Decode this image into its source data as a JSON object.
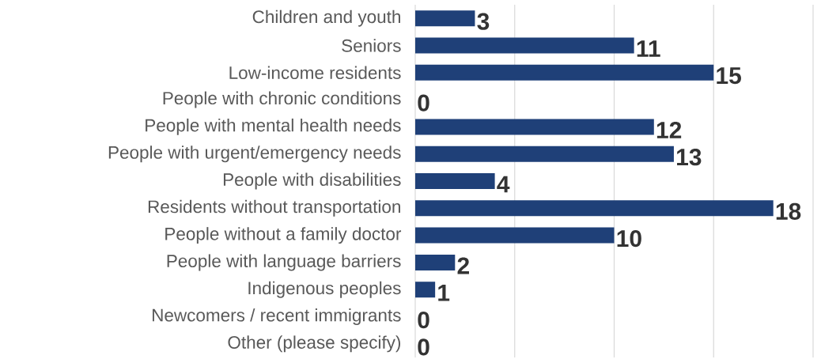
{
  "chart_data": {
    "type": "bar",
    "orientation": "horizontal",
    "categories": [
      "Children and youth",
      "Seniors",
      "Low-income residents",
      "People with chronic conditions",
      "People with mental health needs",
      "People with urgent/emergency needs",
      "People with disabilities",
      "Residents without transportation",
      "People without a family doctor",
      "People with language barriers",
      "Indigenous peoples",
      "Newcomers / recent immigrants",
      "Other (please specify)"
    ],
    "values": [
      3,
      11,
      15,
      0,
      12,
      13,
      4,
      18,
      10,
      2,
      1,
      0,
      0
    ],
    "value_labels": [
      "3",
      "11",
      "15",
      "0",
      "12",
      "13",
      "4",
      "18",
      "10",
      "2",
      "1",
      "0",
      "0"
    ],
    "color": "#1f4078",
    "xlim": [
      0,
      20
    ],
    "xticks": [
      {
        "value": 0,
        "label": null
      },
      {
        "value": 5,
        "label": null
      },
      {
        "value": 10,
        "label": null
      },
      {
        "value": 15,
        "label": null
      },
      {
        "value": 20,
        "label": null
      }
    ],
    "tick_labels": "y",
    "grid": "x"
  }
}
